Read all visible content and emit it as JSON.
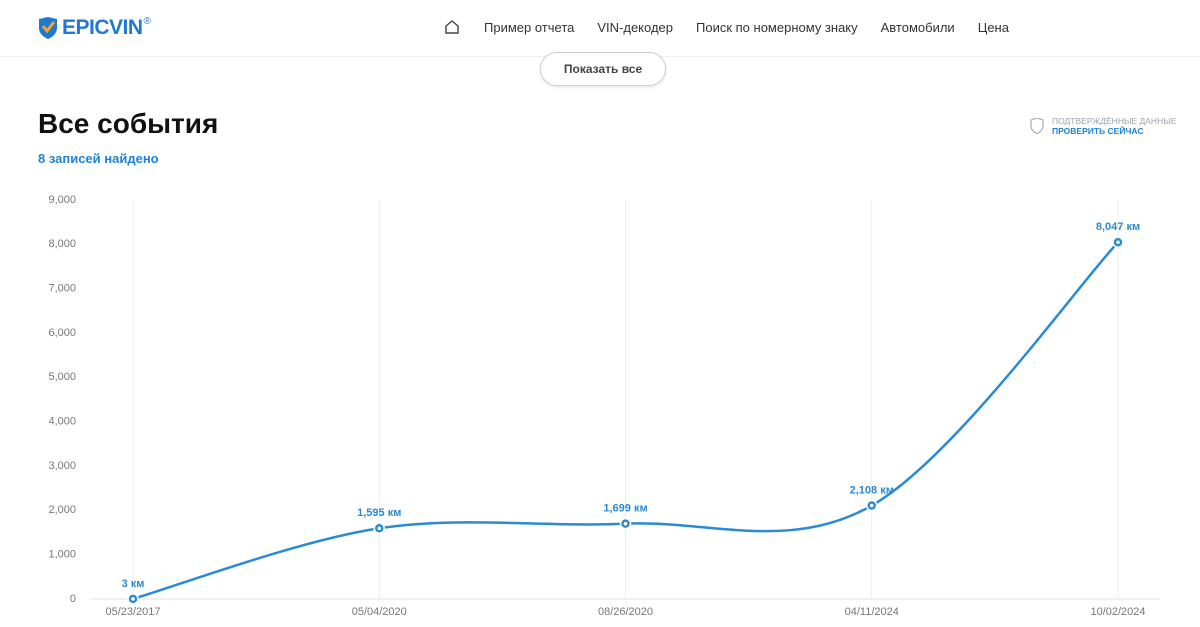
{
  "header": {
    "logo": "EPICVIN",
    "logo_mark": "®",
    "nav": [
      "Пример отчета",
      "VIN-декодер",
      "Поиск по номерному знаку",
      "Автомобили",
      "Цена"
    ]
  },
  "show_all_button": "Показать все",
  "section": {
    "title": "Все события",
    "subtitle": "8 записей найдено",
    "badge": {
      "label": "ПОДТВЕРЖДЁННЫЕ ДАННЫЕ",
      "link": "ПРОВЕРИТЬ СЕЙЧАС"
    }
  },
  "chart_data": {
    "type": "line",
    "color": "#2a8ad4",
    "grid": true,
    "categories": [
      "05/23/2017",
      "05/04/2020",
      "08/26/2020",
      "04/11/2024",
      "10/02/2024"
    ],
    "values": [
      3,
      1595,
      1699,
      2108,
      8047
    ],
    "value_labels": [
      "3 км",
      "1,595 км",
      "1,699 км",
      "2,108 км",
      "8,047 км"
    ],
    "ylim": [
      0,
      9000
    ],
    "yticks": [
      0,
      {
        "value": 1000,
        "label": "1,000"
      },
      {
        "value": 2000,
        "label": "2,000"
      },
      {
        "value": 3000,
        "label": "3,000"
      },
      {
        "value": 4000,
        "label": "4,000"
      },
      {
        "value": 5000,
        "label": "5,000"
      },
      {
        "value": 6000,
        "label": "6,000"
      },
      {
        "value": 7000,
        "label": "7,000"
      },
      {
        "value": 8000,
        "label": "8,000"
      },
      {
        "value": 9000,
        "label": "9,000"
      }
    ]
  }
}
